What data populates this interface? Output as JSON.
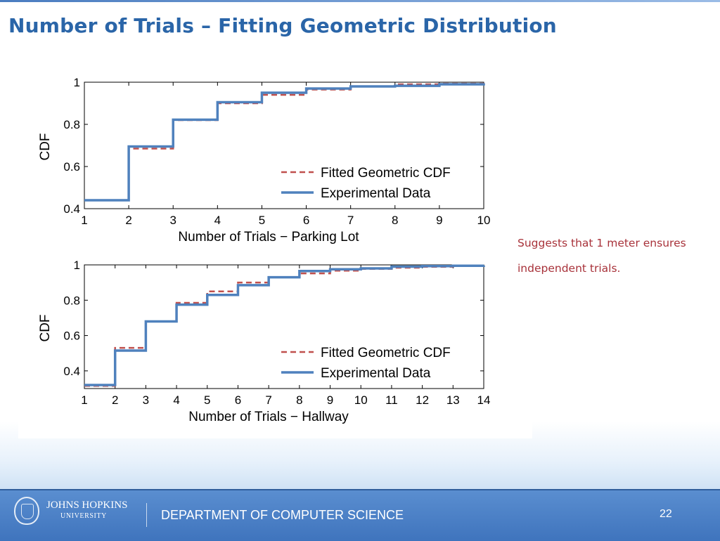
{
  "slide": {
    "title": "Number of Trials – Fitting Geometric Distribution",
    "note_line1": "Suggests that 1 meter ensures",
    "note_line2": "independent trials."
  },
  "footer": {
    "university_name": "JOHNS HOPKINS",
    "university_sub": "UNIVERSITY",
    "department": "DEPARTMENT OF COMPUTER SCIENCE",
    "page_number": "22"
  },
  "colors": {
    "title": "#2a65a8",
    "fitted": "#c0504d",
    "experimental": "#4f81bd",
    "note": "#a8323a"
  },
  "chart_data": [
    {
      "type": "line",
      "xlabel": "Number of Trials − Parking Lot",
      "ylabel": "CDF",
      "xlim": [
        1,
        10
      ],
      "ylim": [
        0.4,
        1
      ],
      "xticks": [
        1,
        2,
        3,
        4,
        5,
        6,
        7,
        8,
        9,
        10
      ],
      "yticks": [
        0.4,
        0.6,
        0.8,
        1
      ],
      "ytick_labels": [
        "0.4",
        "0.6",
        "0.8",
        "1"
      ],
      "legend_position": "lower-right",
      "series": [
        {
          "name": "Fitted Geometric CDF",
          "style": "dashed",
          "x": [
            1,
            2,
            3,
            4,
            5,
            6,
            7,
            8,
            9,
            10
          ],
          "y": [
            0.44,
            0.685,
            0.82,
            0.9,
            0.94,
            0.965,
            0.98,
            0.99,
            0.993,
            0.996
          ]
        },
        {
          "name": "Experimental Data",
          "style": "solid",
          "x": [
            1,
            2,
            3,
            4,
            5,
            6,
            7,
            8,
            9,
            10
          ],
          "y": [
            0.44,
            0.695,
            0.822,
            0.905,
            0.95,
            0.97,
            0.98,
            0.983,
            0.99,
            0.995
          ]
        }
      ]
    },
    {
      "type": "line",
      "xlabel": "Number of Trials − Hallway",
      "ylabel": "CDF",
      "xlim": [
        1,
        14
      ],
      "ylim": [
        0.3,
        1
      ],
      "xticks": [
        1,
        2,
        3,
        4,
        5,
        6,
        7,
        8,
        9,
        10,
        11,
        12,
        13,
        14
      ],
      "yticks": [
        0.4,
        0.6,
        0.8,
        1
      ],
      "ytick_labels": [
        "0.4",
        "0.6",
        "0.8",
        "1"
      ],
      "legend_position": "lower-right",
      "series": [
        {
          "name": "Fitted Geometric CDF",
          "style": "dashed",
          "x": [
            1,
            2,
            3,
            4,
            5,
            6,
            7,
            8,
            9,
            10,
            11,
            12,
            13,
            14
          ],
          "y": [
            0.315,
            0.53,
            0.68,
            0.785,
            0.85,
            0.9,
            0.93,
            0.952,
            0.967,
            0.977,
            0.984,
            0.989,
            0.993,
            0.995
          ]
        },
        {
          "name": "Experimental Data",
          "style": "solid",
          "x": [
            1,
            2,
            3,
            4,
            5,
            6,
            7,
            8,
            9,
            10,
            11,
            12,
            13,
            14
          ],
          "y": [
            0.32,
            0.515,
            0.68,
            0.775,
            0.83,
            0.885,
            0.93,
            0.965,
            0.975,
            0.98,
            0.99,
            0.993,
            0.995,
            0.997
          ]
        }
      ]
    }
  ]
}
